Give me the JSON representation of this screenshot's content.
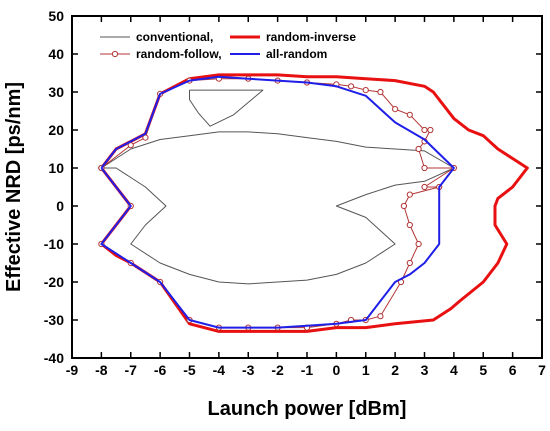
{
  "chart_data": {
    "type": "line",
    "title": "",
    "xlabel": "Launch power [dBm]",
    "ylabel": "Effective NRD [ps/nm]",
    "xlim": [
      -9,
      7
    ],
    "ylim": [
      -40,
      50
    ],
    "xticks": [
      -9,
      -8,
      -7,
      -6,
      -5,
      -4,
      -3,
      -2,
      -1,
      0,
      1,
      2,
      3,
      4,
      5,
      6,
      7
    ],
    "yticks": [
      -40,
      -30,
      -20,
      -10,
      0,
      10,
      20,
      30,
      40,
      50
    ],
    "grid": false,
    "legend_position": "top-left inside plot",
    "series": [
      {
        "name": "conventional,",
        "color": "#555555",
        "marker": "none",
        "linewidth": 1,
        "closed": false,
        "paths": [
          [
            [
              -8,
              10
            ],
            [
              -7,
              15
            ],
            [
              -6,
              17.5
            ],
            [
              -5,
              18.5
            ],
            [
              -4,
              19.5
            ],
            [
              -3,
              19.5
            ],
            [
              -2,
              19
            ],
            [
              -1,
              18
            ],
            [
              0,
              17
            ],
            [
              1,
              15.5
            ],
            [
              2,
              15
            ],
            [
              3,
              14.5
            ],
            [
              4,
              10
            ],
            [
              3,
              6.5
            ],
            [
              2,
              5.5
            ],
            [
              1,
              3
            ],
            [
              0,
              0
            ],
            [
              1,
              -3
            ],
            [
              2,
              -10
            ],
            [
              1,
              -15
            ],
            [
              0,
              -18
            ],
            [
              -1,
              -19.5
            ],
            [
              -2,
              -20
            ],
            [
              -3,
              -20.5
            ],
            [
              -4,
              -20
            ],
            [
              -5,
              -18
            ],
            [
              -6,
              -15
            ],
            [
              -7,
              -10
            ],
            [
              -6.5,
              -5
            ],
            [
              -5.8,
              0
            ],
            [
              -6.5,
              5
            ],
            [
              -7.5,
              10
            ],
            [
              -8,
              10
            ]
          ],
          [
            [
              -5,
              30.5
            ],
            [
              -4.5,
              30.5
            ],
            [
              -2.5,
              30.5
            ],
            [
              -3.5,
              24
            ],
            [
              -4.3,
              21
            ],
            [
              -4.7,
              24.5
            ],
            [
              -5,
              28
            ],
            [
              -5,
              30.5
            ]
          ]
        ]
      },
      {
        "name": "random-inverse",
        "color": "#e81010",
        "marker": "none",
        "linewidth": 3,
        "closed": false,
        "paths": [
          [
            [
              -8,
              10
            ],
            [
              -7.5,
              15
            ],
            [
              -7,
              17
            ],
            [
              -6.5,
              19
            ],
            [
              -6,
              29.5
            ],
            [
              -5,
              33.5
            ],
            [
              -4,
              34.5
            ],
            [
              -3,
              34.5
            ],
            [
              -2,
              34.5
            ],
            [
              -1,
              34
            ],
            [
              0,
              34
            ],
            [
              1,
              33.5
            ],
            [
              2,
              33
            ],
            [
              3,
              31.5
            ],
            [
              3.3,
              30
            ],
            [
              4,
              23
            ],
            [
              4.5,
              20
            ],
            [
              5,
              18.5
            ],
            [
              5.5,
              15
            ],
            [
              6,
              12.5
            ],
            [
              6.5,
              10
            ],
            [
              6,
              5
            ],
            [
              5.5,
              2
            ],
            [
              5.4,
              0
            ],
            [
              5.4,
              -5
            ],
            [
              5.8,
              -10
            ],
            [
              5.5,
              -15
            ],
            [
              5,
              -20
            ],
            [
              4.2,
              -25
            ],
            [
              3.9,
              -27
            ],
            [
              3.3,
              -30
            ],
            [
              2,
              -31
            ],
            [
              1,
              -32
            ],
            [
              0,
              -32
            ],
            [
              -1,
              -33
            ],
            [
              -2,
              -33
            ],
            [
              -3,
              -33
            ],
            [
              -4,
              -33
            ],
            [
              -5,
              -31
            ],
            [
              -6,
              -20
            ],
            [
              -7,
              -15
            ],
            [
              -7.5,
              -13
            ],
            [
              -8,
              -10
            ],
            [
              -7,
              0
            ],
            [
              -7.5,
              5
            ],
            [
              -8,
              10
            ]
          ]
        ]
      },
      {
        "name": "random-follow,",
        "color": "#b23535",
        "marker": "open-circle",
        "linewidth": 1,
        "closed": false,
        "paths": [
          [
            [
              -8,
              10
            ],
            [
              -7,
              16
            ],
            [
              -6.5,
              18
            ],
            [
              -6,
              29.5
            ],
            [
              -5,
              33
            ],
            [
              -4,
              33.5
            ],
            [
              -3,
              33.5
            ],
            [
              -2,
              33
            ],
            [
              -1,
              32.5
            ],
            [
              0,
              32
            ],
            [
              0.5,
              31.5
            ],
            [
              1,
              30.5
            ],
            [
              1.5,
              30
            ],
            [
              2,
              25.5
            ],
            [
              2.5,
              24
            ],
            [
              3,
              20
            ],
            [
              3.2,
              20
            ],
            [
              3,
              17
            ],
            [
              2.8,
              15
            ],
            [
              3,
              10
            ],
            [
              4,
              10
            ],
            [
              3,
              5
            ],
            [
              3.5,
              5
            ],
            [
              2.5,
              3
            ],
            [
              2.3,
              0
            ],
            [
              2.5,
              -5
            ],
            [
              2.8,
              -10
            ],
            [
              2.5,
              -15
            ],
            [
              2.2,
              -20
            ],
            [
              1.5,
              -29
            ],
            [
              1,
              -30
            ],
            [
              0.5,
              -30
            ],
            [
              0,
              -31
            ],
            [
              -1,
              -32
            ],
            [
              -2,
              -32
            ],
            [
              -3,
              -32
            ],
            [
              -4,
              -32
            ],
            [
              -5,
              -30
            ],
            [
              -6,
              -20
            ],
            [
              -7,
              -15
            ],
            [
              -8,
              -10
            ],
            [
              -7,
              0
            ],
            [
              -8,
              10
            ]
          ]
        ]
      },
      {
        "name": "all-random",
        "color": "#1f1fe8",
        "marker": "none",
        "linewidth": 2,
        "closed": false,
        "paths": [
          [
            [
              -8,
              10
            ],
            [
              -7.5,
              15
            ],
            [
              -7,
              17
            ],
            [
              -6.5,
              19
            ],
            [
              -6,
              29.5
            ],
            [
              -5,
              33
            ],
            [
              -4,
              34
            ],
            [
              -3,
              33.5
            ],
            [
              -2,
              33
            ],
            [
              -1,
              32.5
            ],
            [
              0,
              31.5
            ],
            [
              1,
              29
            ],
            [
              2,
              22
            ],
            [
              3,
              17.5
            ],
            [
              4,
              10
            ],
            [
              3.5,
              5
            ],
            [
              3.5,
              0
            ],
            [
              3.5,
              -5
            ],
            [
              3.5,
              -10
            ],
            [
              3,
              -15
            ],
            [
              2.5,
              -18
            ],
            [
              2,
              -20
            ],
            [
              1.5,
              -25
            ],
            [
              1,
              -30
            ],
            [
              0,
              -31
            ],
            [
              -1,
              -31.5
            ],
            [
              -2,
              -32
            ],
            [
              -3,
              -32
            ],
            [
              -4,
              -32
            ],
            [
              -5,
              -30
            ],
            [
              -6,
              -20
            ],
            [
              -7,
              -15
            ],
            [
              -8,
              -10
            ],
            [
              -7,
              0
            ],
            [
              -8,
              10
            ]
          ]
        ]
      }
    ]
  }
}
